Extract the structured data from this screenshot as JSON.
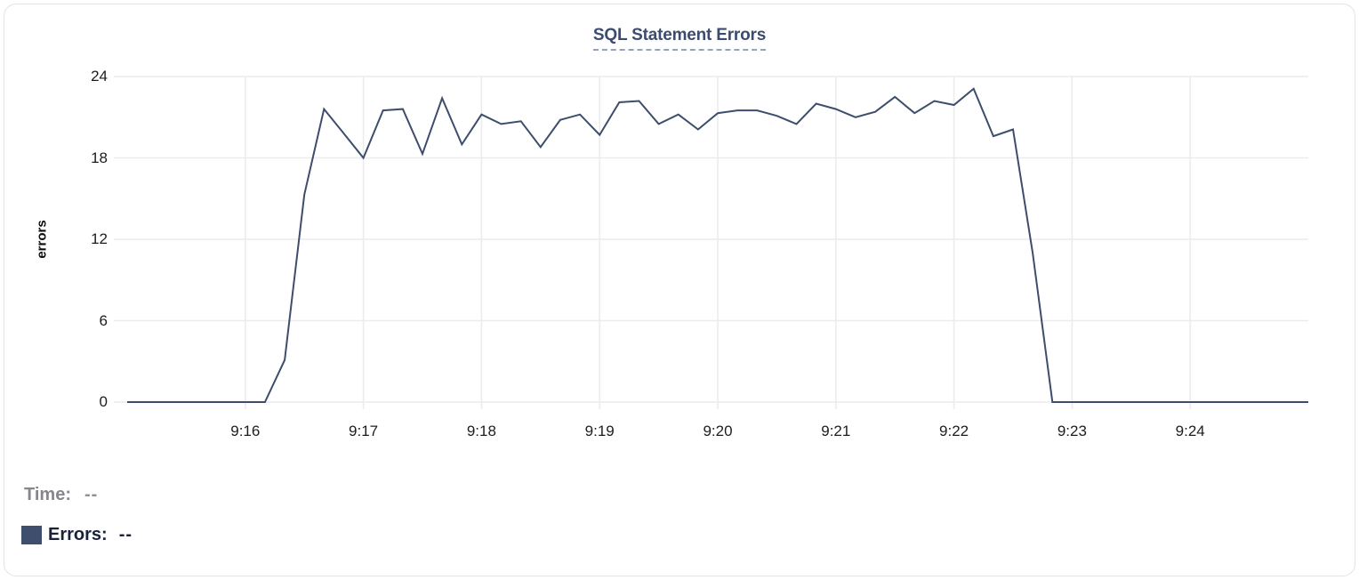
{
  "chart": {
    "title": "SQL Statement Errors",
    "y_axis_label": "errors",
    "y_ticks": [
      0,
      6,
      12,
      18,
      24
    ],
    "x_ticks": [
      "9:16",
      "9:17",
      "9:18",
      "9:19",
      "9:20",
      "9:21",
      "9:22",
      "9:23",
      "9:24"
    ]
  },
  "chart_data": {
    "type": "line",
    "title": "SQL Statement Errors",
    "xlabel": "",
    "ylabel": "errors",
    "ylim": [
      0,
      24
    ],
    "x_range": [
      "9:15:00",
      "9:25:00"
    ],
    "grid": true,
    "legend_position": "bottom-left",
    "series": [
      {
        "name": "Errors",
        "color": "#3e4d6c",
        "x": [
          "9:15:00",
          "9:15:10",
          "9:15:20",
          "9:15:30",
          "9:15:40",
          "9:15:50",
          "9:16:00",
          "9:16:10",
          "9:16:20",
          "9:16:30",
          "9:16:40",
          "9:16:50",
          "9:17:00",
          "9:17:10",
          "9:17:20",
          "9:17:30",
          "9:17:40",
          "9:17:50",
          "9:18:00",
          "9:18:10",
          "9:18:20",
          "9:18:30",
          "9:18:40",
          "9:18:50",
          "9:19:00",
          "9:19:10",
          "9:19:20",
          "9:19:30",
          "9:19:40",
          "9:19:50",
          "9:20:00",
          "9:20:10",
          "9:20:20",
          "9:20:30",
          "9:20:40",
          "9:20:50",
          "9:21:00",
          "9:21:10",
          "9:21:20",
          "9:21:30",
          "9:21:40",
          "9:21:50",
          "9:22:00",
          "9:22:10",
          "9:22:20",
          "9:22:30",
          "9:22:40",
          "9:22:50",
          "9:23:00",
          "9:23:10",
          "9:23:20",
          "9:23:30",
          "9:23:40",
          "9:23:50",
          "9:24:00",
          "9:24:10",
          "9:24:20",
          "9:24:30",
          "9:24:40",
          "9:24:50",
          "9:25:00"
        ],
        "values": [
          0,
          0,
          0,
          0,
          0,
          0,
          0,
          0,
          3.1,
          15.3,
          21.6,
          19.8,
          18,
          21.5,
          21.6,
          18.3,
          22.4,
          19,
          21.2,
          20.5,
          20.7,
          18.8,
          20.8,
          21.2,
          19.7,
          22.1,
          22.2,
          20.5,
          21.2,
          20.1,
          21.3,
          21.5,
          21.5,
          21.1,
          20.5,
          22,
          21.6,
          21,
          21.4,
          22.5,
          21.3,
          22.2,
          21.9,
          23.1,
          19.6,
          20.1,
          11,
          0,
          0,
          0,
          0,
          0,
          0,
          0,
          0,
          0,
          0,
          0,
          0,
          0,
          0
        ]
      }
    ]
  },
  "legend": {
    "time_label": "Time:",
    "time_value": "--",
    "errors_label": "Errors:",
    "errors_value": "--"
  },
  "colors": {
    "line": "#3e4d6c",
    "swatch": "#3f4e6d",
    "grid": "#ececec",
    "title": "#3c4c6e",
    "card_border": "#e2e3e7"
  }
}
